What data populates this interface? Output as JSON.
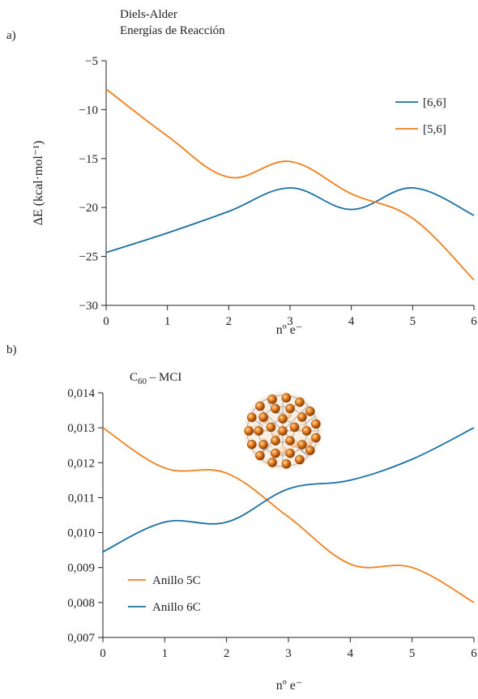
{
  "chart_data": [
    {
      "type": "line",
      "panel_label": "a)",
      "title": "Diels-Alder",
      "subtitle": "Energías de Reacción",
      "xlabel": "nº e⁻",
      "ylabel": "ΔE (kcal·mol⁻¹)",
      "xlim": [
        0,
        6
      ],
      "ylim": [
        -30,
        -5
      ],
      "x_ticks": [
        "0",
        "1",
        "2",
        "3",
        "4",
        "5",
        "6"
      ],
      "y_ticks": [
        "−5",
        "−10",
        "−15",
        "−20",
        "−25",
        "−30"
      ],
      "x": [
        0,
        1,
        2,
        3,
        4,
        5,
        6
      ],
      "legend_position": "top-right",
      "grid": false,
      "series": [
        {
          "name": "[6,6]",
          "color": "#1a6fa3",
          "values": [
            -24.6,
            -22.6,
            -20.4,
            -18.0,
            -20.2,
            -18.0,
            -20.8
          ]
        },
        {
          "name": "[5,6]",
          "color": "#f07f1e",
          "values": [
            -7.9,
            -12.7,
            -16.9,
            -15.3,
            -18.6,
            -21.1,
            -27.4
          ]
        }
      ]
    },
    {
      "type": "line",
      "panel_label": "b)",
      "title": "C",
      "title_subscript": "60",
      "title_suffix": " – MCI",
      "xlabel": "nº e⁻",
      "ylabel": "",
      "xlim": [
        0,
        6
      ],
      "ylim": [
        0.007,
        0.014
      ],
      "x_ticks": [
        "0",
        "1",
        "2",
        "3",
        "4",
        "5",
        "6"
      ],
      "y_ticks": [
        "0,014",
        "0,013",
        "0,012",
        "0,011",
        "0,010",
        "0,009",
        "0,008",
        "0,007"
      ],
      "x": [
        0,
        1,
        2,
        3,
        4,
        5,
        6
      ],
      "legend_position": "bottom-left",
      "grid": false,
      "series": [
        {
          "name": "Anillo 5C",
          "color": "#f07f1e",
          "values": [
            0.013,
            0.01185,
            0.0117,
            0.01045,
            0.0091,
            0.009,
            0.008
          ]
        },
        {
          "name": "Anillo 6C",
          "color": "#1a6fa3",
          "values": [
            0.00945,
            0.0103,
            0.0103,
            0.01125,
            0.0115,
            0.0121,
            0.013
          ]
        }
      ]
    }
  ]
}
